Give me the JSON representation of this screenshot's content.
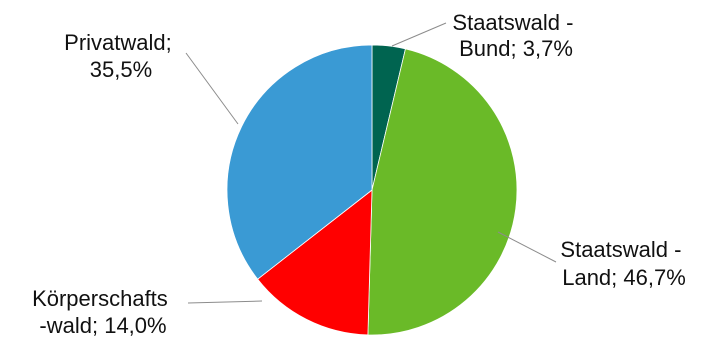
{
  "chart_data": {
    "type": "pie",
    "title": "",
    "slices": [
      {
        "name": "Staatswald - Bund",
        "value": 3.7,
        "color": "#006450",
        "label_lines": [
          "Staatswald -",
          "Bund; 3,7%"
        ]
      },
      {
        "name": "Staatswald - Land",
        "value": 46.7,
        "color": "#6aba28",
        "label_lines": [
          "Staatswald -",
          "Land; 46,7%"
        ]
      },
      {
        "name": "Körperschaftswald",
        "value": 14.0,
        "color": "#ff0000",
        "label_lines": [
          "Körperschafts",
          "-wald; 14,0%"
        ]
      },
      {
        "name": "Privatwald",
        "value": 35.5,
        "color": "#3a9ad4",
        "label_lines": [
          "Privatwald;",
          "35,5%"
        ]
      }
    ]
  }
}
